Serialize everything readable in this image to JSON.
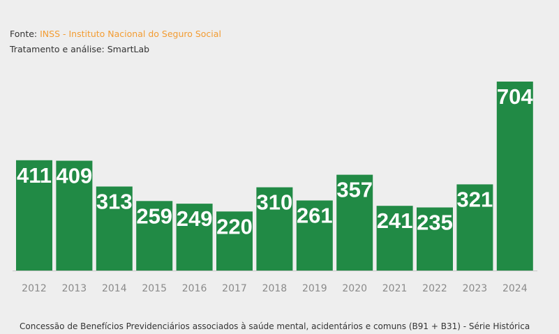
{
  "header": {
    "source_prefix": "Fonte: ",
    "source_link": "INSS - Instituto Nacional do Seguro Social",
    "treatment": "Tratamento e análise: SmartLab"
  },
  "caption": "Concessão de Benefícios Previdenciários associados à saúde mental, acidentários e comuns (B91 + B31) - Série Histórica",
  "colors": {
    "bar": "#218a45",
    "link": "#f39c32"
  },
  "chart_data": {
    "type": "bar",
    "categories": [
      "2012",
      "2013",
      "2014",
      "2015",
      "2016",
      "2017",
      "2018",
      "2019",
      "2020",
      "2021",
      "2022",
      "2023",
      "2024"
    ],
    "values": [
      411,
      409,
      313,
      259,
      249,
      220,
      310,
      261,
      357,
      241,
      235,
      321,
      704
    ],
    "title": "",
    "xlabel": "",
    "ylabel": "",
    "ylim": [
      0,
      720
    ],
    "grid": false,
    "legend": "none"
  }
}
